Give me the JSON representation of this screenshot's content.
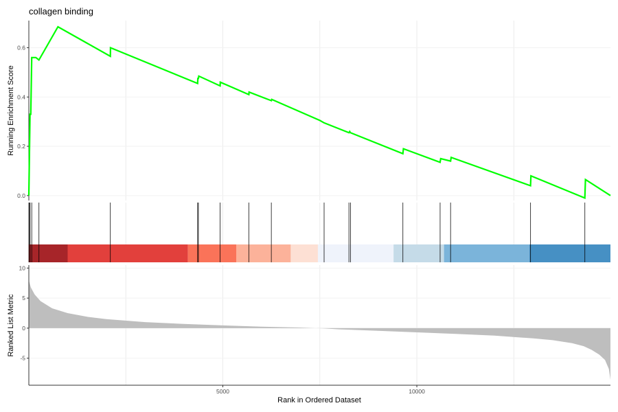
{
  "chart_data": {
    "type": "line",
    "title": "collagen binding",
    "xlabel": "Rank in Ordered Dataset",
    "ylabel_top": "Running Enrichment Score",
    "ylabel_bottom": "Ranked List Metric",
    "xlim": [
      0,
      14990
    ],
    "x_ticks": [
      5000,
      10000
    ],
    "x_tick_labels": [
      "5000",
      "10000"
    ],
    "es_ylim": [
      -0.02,
      0.71
    ],
    "es_ticks": [
      0.0,
      0.2,
      0.4,
      0.6
    ],
    "es_tick_labels": [
      "0.0",
      "0.2",
      "0.4",
      "0.6"
    ],
    "metric_ylim": [
      -9.5,
      10.5
    ],
    "metric_ticks": [
      -5,
      0,
      5,
      10
    ],
    "metric_tick_labels": [
      "-5",
      "0",
      "5",
      "10"
    ],
    "es_color": "#00ff00",
    "es_series": {
      "name": "",
      "x": [
        0,
        30,
        50,
        75,
        180,
        260,
        750,
        2100,
        2105,
        4350,
        4355,
        4370,
        4380,
        4930,
        4935,
        5670,
        5675,
        6250,
        6260,
        7500,
        7610,
        8250,
        8270,
        8290,
        9640,
        9655,
        10600,
        10615,
        10870,
        10885,
        12930,
        12940,
        14330,
        14345,
        14990
      ],
      "y": [
        0.0,
        0.33,
        0.33,
        0.56,
        0.56,
        0.55,
        0.685,
        0.565,
        0.6,
        0.455,
        0.475,
        0.475,
        0.485,
        0.445,
        0.46,
        0.41,
        0.42,
        0.385,
        0.39,
        0.305,
        0.295,
        0.255,
        0.26,
        0.255,
        0.17,
        0.19,
        0.135,
        0.15,
        0.14,
        0.155,
        0.04,
        0.08,
        -0.01,
        0.065,
        0.0
      ]
    },
    "gene_hits": [
      20,
      30,
      75,
      260,
      2100,
      4350,
      4370,
      4930,
      5670,
      6250,
      7610,
      8250,
      8290,
      9640,
      10600,
      10870,
      12930,
      14330
    ],
    "color_bands": [
      {
        "from": 0,
        "to": 1000,
        "color": "#a72529"
      },
      {
        "from": 1000,
        "to": 4100,
        "color": "#e2403c"
      },
      {
        "from": 4100,
        "to": 5350,
        "color": "#fa7359"
      },
      {
        "from": 5350,
        "to": 6750,
        "color": "#fcb29a"
      },
      {
        "from": 6750,
        "to": 7450,
        "color": "#fde0d4"
      },
      {
        "from": 7450,
        "to": 9400,
        "color": "#eff3fb"
      },
      {
        "from": 9400,
        "to": 10700,
        "color": "#c5dbe8"
      },
      {
        "from": 10700,
        "to": 12900,
        "color": "#7bb4da"
      },
      {
        "from": 12900,
        "to": 14990,
        "color": "#4690c4"
      }
    ],
    "metric_fill_color": "#bebebe",
    "metric_series": {
      "name": "",
      "x": [
        0,
        50,
        150,
        300,
        600,
        1000,
        1500,
        2000,
        3000,
        4000,
        5000,
        6000,
        7000,
        7400,
        7600,
        8000,
        9000,
        10000,
        11000,
        12000,
        13000,
        13500,
        14000,
        14300,
        14500,
        14700,
        14850,
        14950,
        14990
      ],
      "y": [
        8.0,
        6.8,
        5.6,
        4.5,
        3.3,
        2.5,
        1.9,
        1.5,
        1.0,
        0.7,
        0.45,
        0.25,
        0.1,
        0.0,
        -0.05,
        -0.2,
        -0.45,
        -0.7,
        -0.95,
        -1.25,
        -1.7,
        -2.0,
        -2.5,
        -3.0,
        -3.6,
        -4.4,
        -5.3,
        -6.8,
        -8.6
      ]
    }
  }
}
